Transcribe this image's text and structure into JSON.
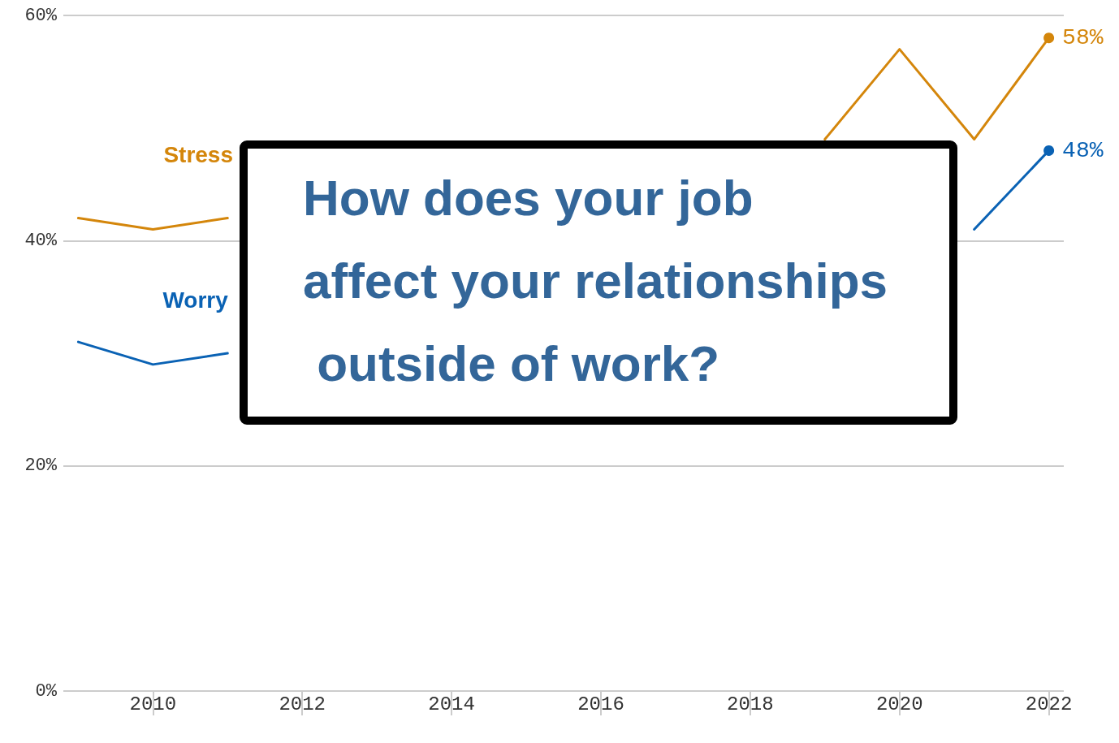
{
  "chart_data": {
    "type": "line",
    "title": "How does your job affect your relationships outside of work?",
    "x": [
      2009,
      2010,
      2011,
      2012,
      2013,
      2014,
      2015,
      2016,
      2017,
      2018,
      2019,
      2020,
      2021,
      2022
    ],
    "series": [
      {
        "name": "Stress",
        "color": "#d4860b",
        "values": [
          42,
          41,
          42,
          null,
          null,
          null,
          null,
          null,
          null,
          null,
          49,
          57,
          49,
          58
        ],
        "value_labels": [
          null,
          null,
          null,
          null,
          null,
          null,
          null,
          null,
          null,
          null,
          null,
          null,
          null,
          "58%"
        ]
      },
      {
        "name": "Worry",
        "color": "#0a62b4",
        "values": [
          31,
          29,
          30,
          null,
          null,
          null,
          null,
          null,
          null,
          null,
          null,
          null,
          41,
          48
        ],
        "value_labels": [
          null,
          null,
          null,
          null,
          null,
          null,
          null,
          null,
          null,
          null,
          null,
          null,
          null,
          "48%"
        ]
      }
    ],
    "xlim": [
      2008.8,
      2022.2
    ],
    "xticks": [
      2010,
      2012,
      2014,
      2016,
      2018,
      2020,
      2022
    ],
    "ylim": [
      0,
      60
    ],
    "yticks": [
      {
        "value": 0,
        "label": "0%"
      },
      {
        "value": 20,
        "label": "20%"
      },
      {
        "value": 40,
        "label": "40%"
      },
      {
        "value": 60,
        "label": "60%"
      }
    ],
    "grid": "y",
    "legend": false,
    "marker": "none",
    "line_style": "solid"
  }
}
